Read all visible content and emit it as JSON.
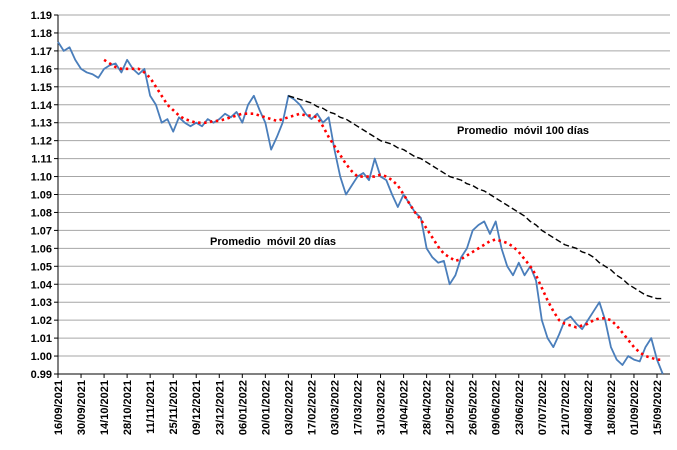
{
  "chart_data": {
    "type": "line",
    "categories": [
      "16/09/2021",
      null,
      null,
      null,
      "30/09/2021",
      null,
      null,
      null,
      "14/10/2021",
      null,
      null,
      null,
      "28/10/2021",
      null,
      null,
      null,
      "11/11/2021",
      null,
      null,
      null,
      "25/11/2021",
      null,
      null,
      null,
      "09/12/2021",
      null,
      null,
      null,
      "23/12/2021",
      null,
      null,
      null,
      "06/01/2022",
      null,
      null,
      null,
      "20/01/2022",
      null,
      null,
      null,
      "03/02/2022",
      null,
      null,
      null,
      "17/02/2022",
      null,
      null,
      null,
      "03/03/2022",
      null,
      null,
      null,
      "17/03/2022",
      null,
      null,
      null,
      "31/03/2022",
      null,
      null,
      null,
      "14/04/2022",
      null,
      null,
      null,
      "28/04/2022",
      null,
      null,
      null,
      "12/05/2022",
      null,
      null,
      null,
      "26/05/2022",
      null,
      null,
      null,
      "09/06/2022",
      null,
      null,
      null,
      "23/06/2022",
      null,
      null,
      null,
      "07/07/2022",
      null,
      null,
      null,
      "21/07/2022",
      null,
      null,
      null,
      "04/08/2022",
      null,
      null,
      null,
      "18/08/2022",
      null,
      null,
      null,
      "01/09/2022",
      null,
      null,
      null,
      "15/09/2022",
      null
    ],
    "series": [
      {
        "color": "#4a7ebb",
        "style": "solid",
        "values": [
          1.175,
          1.17,
          1.172,
          1.165,
          1.16,
          1.158,
          1.157,
          1.155,
          1.16,
          1.162,
          1.163,
          1.158,
          1.165,
          1.16,
          1.157,
          1.16,
          1.145,
          1.14,
          1.13,
          1.132,
          1.125,
          1.133,
          1.13,
          1.128,
          1.13,
          1.128,
          1.132,
          1.13,
          1.132,
          1.135,
          1.133,
          1.136,
          1.13,
          1.14,
          1.145,
          1.137,
          1.13,
          1.115,
          1.122,
          1.13,
          1.145,
          1.143,
          1.14,
          1.135,
          1.132,
          1.135,
          1.13,
          1.133,
          1.115,
          1.1,
          1.09,
          1.095,
          1.1,
          1.102,
          1.098,
          1.11,
          1.1,
          1.098,
          1.09,
          1.083,
          1.09,
          1.085,
          1.08,
          1.077,
          1.06,
          1.055,
          1.052,
          1.053,
          1.04,
          1.045,
          1.055,
          1.06,
          1.07,
          1.073,
          1.075,
          1.068,
          1.075,
          1.06,
          1.05,
          1.045,
          1.052,
          1.045,
          1.05,
          1.042,
          1.02,
          1.01,
          1.005,
          1.012,
          1.02,
          1.022,
          1.018,
          1.015,
          1.02,
          1.025,
          1.03,
          1.02,
          1.005,
          0.998,
          0.995,
          1.0,
          0.998,
          0.997,
          1.005,
          1.01,
          0.998,
          0.99
        ]
      },
      {
        "name": "Promedio  móvil 20 días",
        "color": "#ff0000",
        "style": "dotted",
        "values": [
          null,
          null,
          null,
          null,
          null,
          null,
          null,
          null,
          1.165,
          1.163,
          1.161,
          1.16,
          1.16,
          1.16,
          1.16,
          1.158,
          1.155,
          1.15,
          1.145,
          1.14,
          1.137,
          1.134,
          1.132,
          1.131,
          1.13,
          1.13,
          1.13,
          1.131,
          1.131,
          1.132,
          1.133,
          1.134,
          1.135,
          1.135,
          1.135,
          1.134,
          1.133,
          1.132,
          1.131,
          1.132,
          1.133,
          1.134,
          1.135,
          1.134,
          1.134,
          1.133,
          1.128,
          1.122,
          1.117,
          1.112,
          1.107,
          1.103,
          1.1,
          1.1,
          1.1,
          1.1,
          1.101,
          1.1,
          1.098,
          1.095,
          1.09,
          1.085,
          1.08,
          1.076,
          1.071,
          1.066,
          1.061,
          1.057,
          1.055,
          1.053,
          1.054,
          1.056,
          1.058,
          1.06,
          1.062,
          1.064,
          1.065,
          1.064,
          1.063,
          1.061,
          1.058,
          1.054,
          1.05,
          1.045,
          1.038,
          1.031,
          1.025,
          1.02,
          1.018,
          1.017,
          1.016,
          1.017,
          1.018,
          1.02,
          1.021,
          1.021,
          1.02,
          1.017,
          1.013,
          1.009,
          1.005,
          1.002,
          1.0,
          0.999,
          0.998,
          0.998
        ]
      },
      {
        "name": "Promedio  móvil 100 días",
        "color": "#000000",
        "style": "dashed",
        "values": [
          null,
          null,
          null,
          null,
          null,
          null,
          null,
          null,
          null,
          null,
          null,
          null,
          null,
          null,
          null,
          null,
          null,
          null,
          null,
          null,
          null,
          null,
          null,
          null,
          null,
          null,
          null,
          null,
          null,
          null,
          null,
          null,
          null,
          null,
          null,
          null,
          null,
          null,
          null,
          null,
          1.145,
          1.144,
          1.143,
          1.142,
          1.141,
          1.139,
          1.138,
          1.136,
          1.135,
          1.133,
          1.132,
          1.13,
          1.128,
          1.126,
          1.124,
          1.122,
          1.12,
          1.119,
          1.118,
          1.116,
          1.115,
          1.113,
          1.111,
          1.11,
          1.108,
          1.106,
          1.104,
          1.102,
          1.1,
          1.099,
          1.098,
          1.096,
          1.095,
          1.093,
          1.092,
          1.09,
          1.088,
          1.086,
          1.084,
          1.082,
          1.08,
          1.078,
          1.075,
          1.073,
          1.07,
          1.068,
          1.066,
          1.064,
          1.062,
          1.061,
          1.06,
          1.058,
          1.057,
          1.055,
          1.052,
          1.05,
          1.048,
          1.045,
          1.043,
          1.04,
          1.038,
          1.036,
          1.034,
          1.033,
          1.032,
          1.032
        ]
      }
    ],
    "ylim": [
      0.99,
      1.19
    ],
    "yticks": [
      0.99,
      {
        "value": 1,
        "label": "1.00"
      },
      1.01,
      1.02,
      1.03,
      1.04,
      1.05,
      1.06,
      1.07,
      1.08,
      1.09,
      {
        "value": 1.1,
        "label": "1.10"
      },
      1.11,
      1.12,
      1.13,
      1.14,
      1.15,
      1.16,
      1.17,
      1.18,
      1.19
    ],
    "grid": true
  }
}
